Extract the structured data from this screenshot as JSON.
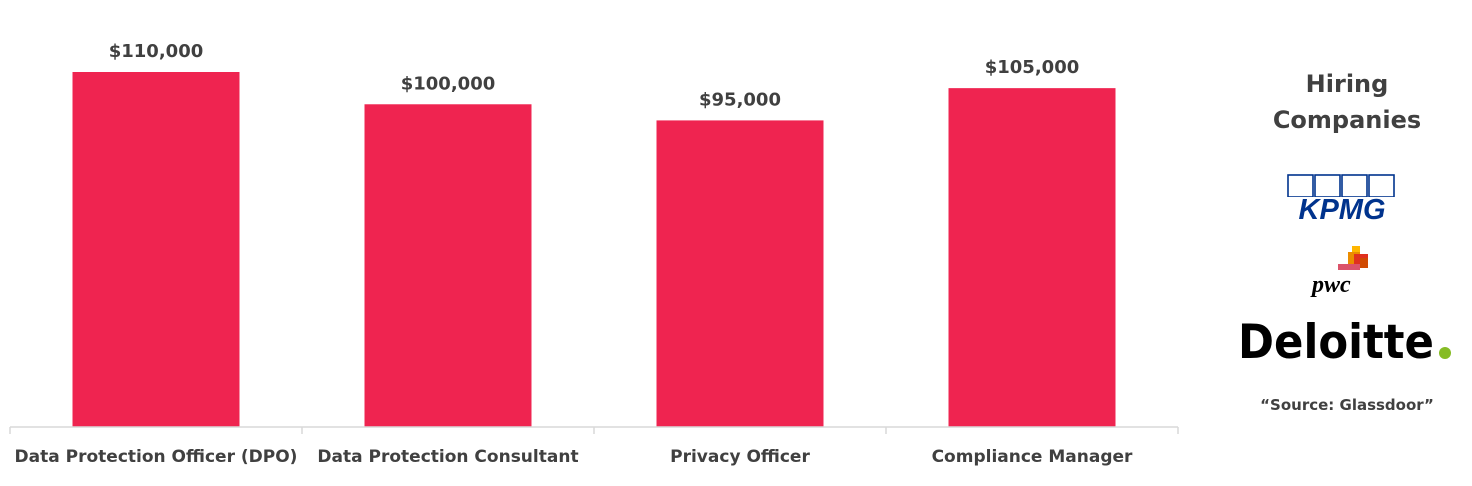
{
  "chart_data": {
    "type": "bar",
    "categories": [
      "Data Protection Officer (DPO)",
      "Data Protection Consultant",
      "Privacy Officer",
      "Compliance Manager"
    ],
    "values": [
      110000,
      100000,
      95000,
      105000
    ],
    "data_labels": [
      "$110,000",
      "$100,000",
      "$95,000",
      "$105,000"
    ],
    "title": "",
    "xlabel": "",
    "ylabel": "",
    "ylim": [
      0,
      120000
    ],
    "grid": false,
    "legend": "none",
    "bar_color": "#EF2450",
    "axis_color": "#D9D9D9",
    "label_color": "#404040"
  },
  "sidebar": {
    "title_line1": "Hiring",
    "title_line2": "Companies",
    "logos": [
      {
        "name": "KPMG",
        "text": "KPMG",
        "color": "#00338D"
      },
      {
        "name": "PwC",
        "text": "pwc",
        "color": "#000000"
      },
      {
        "name": "Deloitte",
        "text": "Deloitte",
        "color": "#000000",
        "dot_color": "#86BC25"
      }
    ],
    "source": "“Source: Glassdoor”"
  }
}
